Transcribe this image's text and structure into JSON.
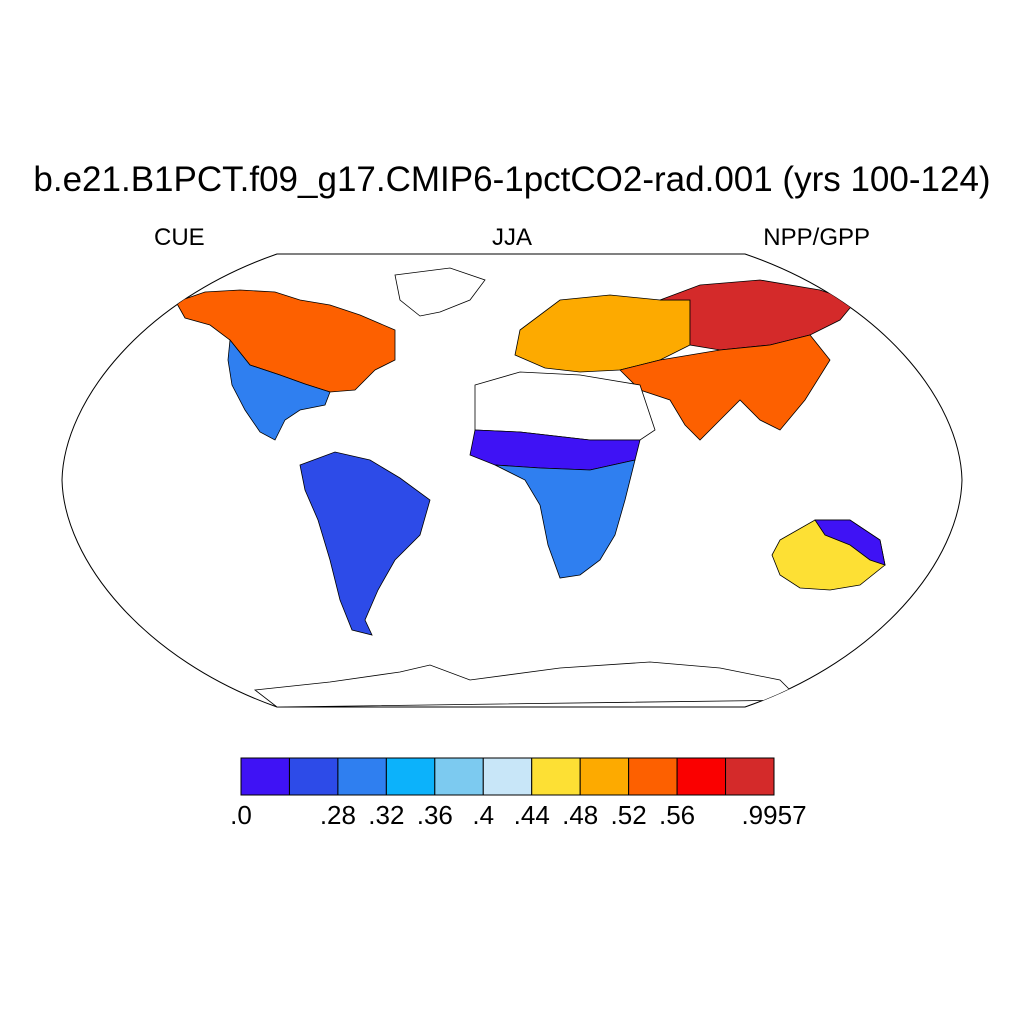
{
  "title": "b.e21.B1PCT.f09_g17.CMIP6-1pctCO2-rad.001 (yrs 100-124)",
  "subtitle_left": "CUE",
  "subtitle_center": "JJA",
  "subtitle_right": "NPP/GPP",
  "colorbar": {
    "colors": [
      "#3f12f5",
      "#2d4be8",
      "#2f7ff0",
      "#0cb2fb",
      "#7ccaf0",
      "#c8e6f8",
      "#fde034",
      "#fdaa00",
      "#fd6000",
      "#fa0000",
      "#d42a2a"
    ],
    "labels": [
      ".0",
      ".28",
      ".32",
      ".36",
      ".4",
      ".44",
      ".48",
      ".52",
      ".56",
      ".9957"
    ],
    "label_boundary_index": [
      0,
      2,
      3,
      4,
      5,
      6,
      7,
      8,
      9,
      11
    ]
  },
  "regions": [
    {
      "name": "north-america-north",
      "color": "#fd6000"
    },
    {
      "name": "north-america-south",
      "color": "#2f7ff0"
    },
    {
      "name": "south-america",
      "color": "#2d4be8"
    },
    {
      "name": "europe",
      "color": "#fdaa00"
    },
    {
      "name": "siberia",
      "color": "#d42a2a"
    },
    {
      "name": "sahel",
      "color": "#3f12f5"
    },
    {
      "name": "africa-south",
      "color": "#2f7ff0"
    },
    {
      "name": "south-asia",
      "color": "#fd6000"
    },
    {
      "name": "australia",
      "color": "#fde034"
    },
    {
      "name": "australia-rim",
      "color": "#3f12f5"
    }
  ]
}
